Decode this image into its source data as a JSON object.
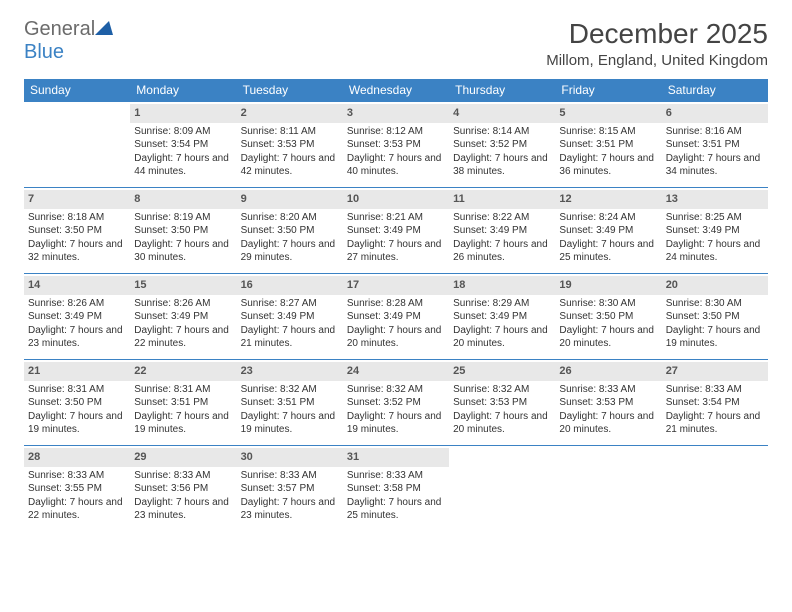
{
  "logo": {
    "part1": "General",
    "part2": "Blue"
  },
  "title": "December 2025",
  "location": "Millom, England, United Kingdom",
  "colors": {
    "header_bg": "#3b82c4",
    "header_text": "#ffffff",
    "daynum_bg": "#e8e8e8",
    "border": "#3b82c4",
    "logo_gray": "#6b6b6b",
    "logo_blue": "#3b82c4"
  },
  "weekdays": [
    "Sunday",
    "Monday",
    "Tuesday",
    "Wednesday",
    "Thursday",
    "Friday",
    "Saturday"
  ],
  "weeks": [
    [
      null,
      {
        "n": "1",
        "sr": "Sunrise: 8:09 AM",
        "ss": "Sunset: 3:54 PM",
        "dl": "Daylight: 7 hours and 44 minutes."
      },
      {
        "n": "2",
        "sr": "Sunrise: 8:11 AM",
        "ss": "Sunset: 3:53 PM",
        "dl": "Daylight: 7 hours and 42 minutes."
      },
      {
        "n": "3",
        "sr": "Sunrise: 8:12 AM",
        "ss": "Sunset: 3:53 PM",
        "dl": "Daylight: 7 hours and 40 minutes."
      },
      {
        "n": "4",
        "sr": "Sunrise: 8:14 AM",
        "ss": "Sunset: 3:52 PM",
        "dl": "Daylight: 7 hours and 38 minutes."
      },
      {
        "n": "5",
        "sr": "Sunrise: 8:15 AM",
        "ss": "Sunset: 3:51 PM",
        "dl": "Daylight: 7 hours and 36 minutes."
      },
      {
        "n": "6",
        "sr": "Sunrise: 8:16 AM",
        "ss": "Sunset: 3:51 PM",
        "dl": "Daylight: 7 hours and 34 minutes."
      }
    ],
    [
      {
        "n": "7",
        "sr": "Sunrise: 8:18 AM",
        "ss": "Sunset: 3:50 PM",
        "dl": "Daylight: 7 hours and 32 minutes."
      },
      {
        "n": "8",
        "sr": "Sunrise: 8:19 AM",
        "ss": "Sunset: 3:50 PM",
        "dl": "Daylight: 7 hours and 30 minutes."
      },
      {
        "n": "9",
        "sr": "Sunrise: 8:20 AM",
        "ss": "Sunset: 3:50 PM",
        "dl": "Daylight: 7 hours and 29 minutes."
      },
      {
        "n": "10",
        "sr": "Sunrise: 8:21 AM",
        "ss": "Sunset: 3:49 PM",
        "dl": "Daylight: 7 hours and 27 minutes."
      },
      {
        "n": "11",
        "sr": "Sunrise: 8:22 AM",
        "ss": "Sunset: 3:49 PM",
        "dl": "Daylight: 7 hours and 26 minutes."
      },
      {
        "n": "12",
        "sr": "Sunrise: 8:24 AM",
        "ss": "Sunset: 3:49 PM",
        "dl": "Daylight: 7 hours and 25 minutes."
      },
      {
        "n": "13",
        "sr": "Sunrise: 8:25 AM",
        "ss": "Sunset: 3:49 PM",
        "dl": "Daylight: 7 hours and 24 minutes."
      }
    ],
    [
      {
        "n": "14",
        "sr": "Sunrise: 8:26 AM",
        "ss": "Sunset: 3:49 PM",
        "dl": "Daylight: 7 hours and 23 minutes."
      },
      {
        "n": "15",
        "sr": "Sunrise: 8:26 AM",
        "ss": "Sunset: 3:49 PM",
        "dl": "Daylight: 7 hours and 22 minutes."
      },
      {
        "n": "16",
        "sr": "Sunrise: 8:27 AM",
        "ss": "Sunset: 3:49 PM",
        "dl": "Daylight: 7 hours and 21 minutes."
      },
      {
        "n": "17",
        "sr": "Sunrise: 8:28 AM",
        "ss": "Sunset: 3:49 PM",
        "dl": "Daylight: 7 hours and 20 minutes."
      },
      {
        "n": "18",
        "sr": "Sunrise: 8:29 AM",
        "ss": "Sunset: 3:49 PM",
        "dl": "Daylight: 7 hours and 20 minutes."
      },
      {
        "n": "19",
        "sr": "Sunrise: 8:30 AM",
        "ss": "Sunset: 3:50 PM",
        "dl": "Daylight: 7 hours and 20 minutes."
      },
      {
        "n": "20",
        "sr": "Sunrise: 8:30 AM",
        "ss": "Sunset: 3:50 PM",
        "dl": "Daylight: 7 hours and 19 minutes."
      }
    ],
    [
      {
        "n": "21",
        "sr": "Sunrise: 8:31 AM",
        "ss": "Sunset: 3:50 PM",
        "dl": "Daylight: 7 hours and 19 minutes."
      },
      {
        "n": "22",
        "sr": "Sunrise: 8:31 AM",
        "ss": "Sunset: 3:51 PM",
        "dl": "Daylight: 7 hours and 19 minutes."
      },
      {
        "n": "23",
        "sr": "Sunrise: 8:32 AM",
        "ss": "Sunset: 3:51 PM",
        "dl": "Daylight: 7 hours and 19 minutes."
      },
      {
        "n": "24",
        "sr": "Sunrise: 8:32 AM",
        "ss": "Sunset: 3:52 PM",
        "dl": "Daylight: 7 hours and 19 minutes."
      },
      {
        "n": "25",
        "sr": "Sunrise: 8:32 AM",
        "ss": "Sunset: 3:53 PM",
        "dl": "Daylight: 7 hours and 20 minutes."
      },
      {
        "n": "26",
        "sr": "Sunrise: 8:33 AM",
        "ss": "Sunset: 3:53 PM",
        "dl": "Daylight: 7 hours and 20 minutes."
      },
      {
        "n": "27",
        "sr": "Sunrise: 8:33 AM",
        "ss": "Sunset: 3:54 PM",
        "dl": "Daylight: 7 hours and 21 minutes."
      }
    ],
    [
      {
        "n": "28",
        "sr": "Sunrise: 8:33 AM",
        "ss": "Sunset: 3:55 PM",
        "dl": "Daylight: 7 hours and 22 minutes."
      },
      {
        "n": "29",
        "sr": "Sunrise: 8:33 AM",
        "ss": "Sunset: 3:56 PM",
        "dl": "Daylight: 7 hours and 23 minutes."
      },
      {
        "n": "30",
        "sr": "Sunrise: 8:33 AM",
        "ss": "Sunset: 3:57 PM",
        "dl": "Daylight: 7 hours and 23 minutes."
      },
      {
        "n": "31",
        "sr": "Sunrise: 8:33 AM",
        "ss": "Sunset: 3:58 PM",
        "dl": "Daylight: 7 hours and 25 minutes."
      },
      null,
      null,
      null
    ]
  ]
}
